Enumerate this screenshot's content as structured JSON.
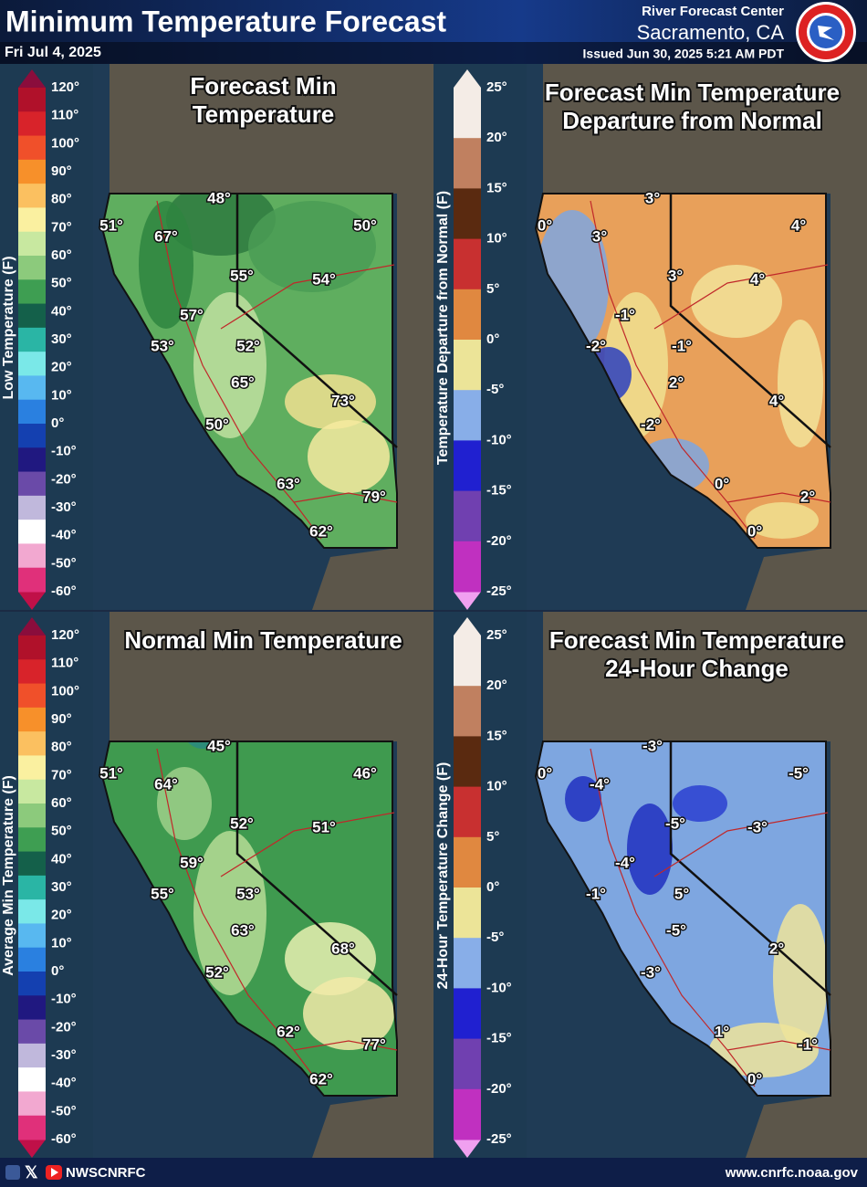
{
  "header": {
    "title": "Minimum Temperature Forecast",
    "date": "Fri Jul 4, 2025",
    "office": "River Forecast Center",
    "location": "Sacramento, CA",
    "issued": "Issued Jun 30, 2025 5:21 AM PDT"
  },
  "panels": [
    {
      "title": [
        "Forecast Min",
        "Temperature"
      ],
      "colorbar": {
        "label": "Low Temperature (F)",
        "ticks": [
          "120°",
          "110°",
          "100°",
          "90°",
          "80°",
          "70°",
          "60°",
          "50°",
          "40°",
          "30°",
          "20°",
          "10°",
          "0°",
          "-10°",
          "-20°",
          "-30°",
          "-40°",
          "-50°",
          "-60°"
        ]
      },
      "labels": [
        "51°",
        "48°",
        "67°",
        "50°",
        "55°",
        "54°",
        "57°",
        "53°",
        "52°",
        "65°",
        "73°",
        "50°",
        "63°",
        "79°",
        "62°"
      ]
    },
    {
      "title": [
        "Forecast Min Temperature",
        "Departure from Normal"
      ],
      "colorbar": {
        "label": "Temperature Departure from Normal (F)",
        "ticks": [
          "25°",
          "20°",
          "15°",
          "10°",
          "5°",
          "0°",
          "-5°",
          "-10°",
          "-15°",
          "-20°",
          "-25°"
        ]
      },
      "labels": [
        "0°",
        "3°",
        "3°",
        "4°",
        "3°",
        "4°",
        "-1°",
        "-2°",
        "-1°",
        "2°",
        "4°",
        "-2°",
        "0°",
        "2°",
        "0°"
      ]
    },
    {
      "title": [
        "Normal Min Temperature"
      ],
      "colorbar": {
        "label": "Average Min Temperature (F)",
        "ticks": [
          "120°",
          "110°",
          "100°",
          "90°",
          "80°",
          "70°",
          "60°",
          "50°",
          "40°",
          "30°",
          "20°",
          "10°",
          "0°",
          "-10°",
          "-20°",
          "-30°",
          "-40°",
          "-50°",
          "-60°"
        ]
      },
      "labels": [
        "51°",
        "45°",
        "64°",
        "46°",
        "52°",
        "51°",
        "59°",
        "55°",
        "53°",
        "63°",
        "68°",
        "52°",
        "62°",
        "77°",
        "62°"
      ]
    },
    {
      "title": [
        "Forecast Min Temperature",
        "24-Hour Change"
      ],
      "colorbar": {
        "label": "24-Hour Temperature Change (F)",
        "ticks": [
          "25°",
          "20°",
          "15°",
          "10°",
          "5°",
          "0°",
          "-5°",
          "-10°",
          "-15°",
          "-20°",
          "-25°"
        ]
      },
      "labels": [
        "0°",
        "-3°",
        "-4°",
        "-5°",
        "-5°",
        "-3°",
        "-4°",
        "-1°",
        "5°",
        "-5°",
        "2°",
        "-3°",
        "1°",
        "-1°",
        "0°"
      ]
    }
  ],
  "footer": {
    "handle": "NWSCNRFC",
    "url": "www.cnrfc.noaa.gov"
  }
}
